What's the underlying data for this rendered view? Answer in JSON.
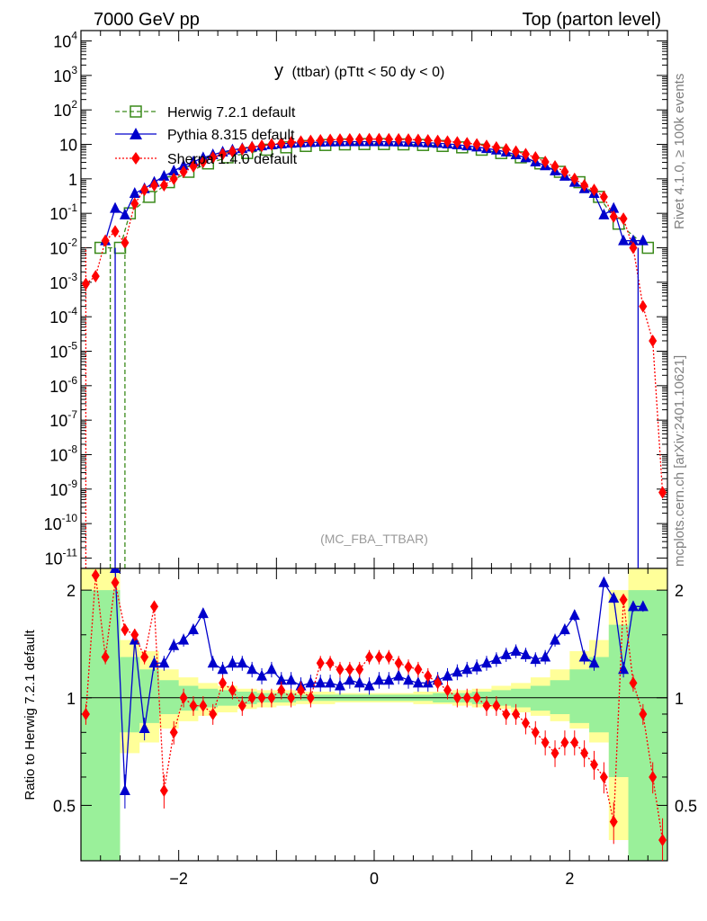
{
  "header": {
    "left": "7000 GeV pp",
    "right": "Top (parton level)"
  },
  "side_labels": {
    "rivet": "Rivet 4.1.0, ≥ 100k events",
    "mcplots": "mcplots.cern.ch [arXiv:2401.10621]"
  },
  "plot_title": {
    "main": "y",
    "sub": "(ttbar) (pTtt < 50 dy < 0)"
  },
  "watermark": "(MC_FBA_TTBAR)",
  "ratio_ylabel": "Ratio to Herwig 7.2.1 default",
  "colors": {
    "herwig": "#3a8a1a",
    "pythia": "#0000cc",
    "sherpa": "#ff0000",
    "band_green": "#9af09a",
    "band_yellow": "#ffff99"
  },
  "chart_data": [
    {
      "type": "line",
      "scale": "log",
      "xlim": [
        -3,
        3
      ],
      "ylim": [
        5e-12,
        20000
      ],
      "yticks": [
        {
          "label": "10",
          "exp": "-11",
          "v": 1e-11
        },
        {
          "label": "10",
          "exp": "-10",
          "v": 1e-10
        },
        {
          "label": "10",
          "exp": "-9",
          "v": 1e-09
        },
        {
          "label": "10",
          "exp": "-8",
          "v": 1e-08
        },
        {
          "label": "10",
          "exp": "-7",
          "v": 1e-07
        },
        {
          "label": "10",
          "exp": "-6",
          "v": 1e-06
        },
        {
          "label": "10",
          "exp": "-5",
          "v": 1e-05
        },
        {
          "label": "10",
          "exp": "-4",
          "v": 0.0001
        },
        {
          "label": "10",
          "exp": "-3",
          "v": 0.001
        },
        {
          "label": "10",
          "exp": "-2",
          "v": 0.01
        },
        {
          "label": "10",
          "exp": "-1",
          "v": 0.1
        },
        {
          "label": "1",
          "exp": "",
          "v": 1
        },
        {
          "label": "10",
          "exp": "",
          "v": 10
        },
        {
          "label": "10",
          "exp": "2",
          "v": 100
        },
        {
          "label": "10",
          "exp": "3",
          "v": 1000
        },
        {
          "label": "10",
          "exp": "4",
          "v": 10000
        }
      ],
      "series": [
        {
          "name": "Herwig 7.2.1 default",
          "marker": "square-open",
          "x": [
            -2.8,
            -2.6,
            -2.5,
            -2.3,
            -2.1,
            -1.9,
            -1.7,
            -1.5,
            -1.3,
            -1.1,
            -0.9,
            -0.7,
            -0.5,
            -0.3,
            -0.1,
            0.1,
            0.3,
            0.5,
            0.7,
            0.9,
            1.1,
            1.3,
            1.5,
            1.7,
            1.9,
            2.1,
            2.3,
            2.5,
            2.8
          ],
          "y": [
            0.01,
            0.01,
            0.1,
            0.3,
            0.8,
            1.6,
            2.8,
            4.2,
            5.6,
            7.0,
            8.2,
            9.0,
            9.6,
            10.0,
            10.2,
            10.2,
            10.0,
            9.6,
            9.0,
            8.2,
            7.0,
            5.6,
            4.2,
            2.8,
            1.6,
            0.8,
            0.3,
            0.05,
            0.01
          ]
        },
        {
          "name": "Pythia 8.315 default",
          "marker": "triangle",
          "x": [
            -2.75,
            -2.65,
            -2.55,
            -2.45,
            -2.35,
            -2.25,
            -2.15,
            -2.05,
            -1.95,
            -1.85,
            -1.75,
            -1.65,
            -1.55,
            -1.45,
            -1.35,
            -1.25,
            -1.15,
            -1.05,
            -0.95,
            -0.85,
            -0.75,
            -0.65,
            -0.55,
            -0.45,
            -0.35,
            -0.25,
            -0.15,
            -0.05,
            0.05,
            0.15,
            0.25,
            0.35,
            0.45,
            0.55,
            0.65,
            0.75,
            0.85,
            0.95,
            1.05,
            1.15,
            1.25,
            1.35,
            1.45,
            1.55,
            1.65,
            1.75,
            1.85,
            1.95,
            2.05,
            2.15,
            2.25,
            2.35,
            2.45,
            2.55,
            2.65,
            2.75
          ],
          "y": [
            0.016,
            0.14,
            0.09,
            0.38,
            0.52,
            0.8,
            1.2,
            1.7,
            2.4,
            3.1,
            4.1,
            5.0,
            6.0,
            6.9,
            7.6,
            8.4,
            9.1,
            9.8,
            10.3,
            10.8,
            11.1,
            11.4,
            11.6,
            11.8,
            11.9,
            12.0,
            12.0,
            12.0,
            12.0,
            11.9,
            11.8,
            11.6,
            11.4,
            11.1,
            10.8,
            10.3,
            9.8,
            9.1,
            8.4,
            7.6,
            6.9,
            6.0,
            5.0,
            4.1,
            3.1,
            2.4,
            1.7,
            1.2,
            0.8,
            0.52,
            0.38,
            0.09,
            0.14,
            0.016,
            0.016,
            0.016
          ]
        },
        {
          "name": "Sherpa 1.4.0 default",
          "marker": "diamond",
          "x": [
            -2.95,
            -2.85,
            -2.75,
            -2.65,
            -2.55,
            -2.45,
            -2.35,
            -2.25,
            -2.15,
            -2.05,
            -1.95,
            -1.85,
            -1.75,
            -1.65,
            -1.55,
            -1.45,
            -1.35,
            -1.25,
            -1.15,
            -1.05,
            -0.95,
            -0.85,
            -0.75,
            -0.65,
            -0.55,
            -0.45,
            -0.35,
            -0.25,
            -0.15,
            -0.05,
            0.05,
            0.15,
            0.25,
            0.35,
            0.45,
            0.55,
            0.65,
            0.75,
            0.85,
            0.95,
            1.05,
            1.15,
            1.25,
            1.35,
            1.45,
            1.55,
            1.65,
            1.75,
            1.85,
            1.95,
            2.05,
            2.15,
            2.25,
            2.35,
            2.45,
            2.55,
            2.65,
            2.75,
            2.85,
            2.95
          ],
          "y": [
            0.0009,
            0.0015,
            0.016,
            0.03,
            0.014,
            0.19,
            0.48,
            0.65,
            0.65,
            1.0,
            1.6,
            2.3,
            3.1,
            4.2,
            5.2,
            6.2,
            7.2,
            8.2,
            9.1,
            10.0,
            10.8,
            11.5,
            12.1,
            12.6,
            13.1,
            13.5,
            13.8,
            14.0,
            14.1,
            14.2,
            14.2,
            14.1,
            14.0,
            13.8,
            13.5,
            13.1,
            12.6,
            12.1,
            11.5,
            10.8,
            10.0,
            9.1,
            8.2,
            7.2,
            6.2,
            5.2,
            4.2,
            3.1,
            2.3,
            1.6,
            1.0,
            0.65,
            0.48,
            0.3,
            0.08,
            0.07,
            0.01,
            0.0002,
            2e-05,
            8e-10
          ]
        }
      ]
    },
    {
      "type": "line",
      "xlim": [
        -3,
        3
      ],
      "ylim": [
        0.35,
        2.3
      ],
      "xticks": [
        {
          "label": "−2",
          "v": -2
        },
        {
          "label": "0",
          "v": 0
        },
        {
          "label": "2",
          "v": 2
        }
      ],
      "yticks": [
        {
          "label": "0.5",
          "v": 0.5
        },
        {
          "label": "1",
          "v": 1
        },
        {
          "label": "2",
          "v": 2
        }
      ],
      "band_x": [
        -2.9,
        -2.7,
        -2.5,
        -2.3,
        -2.1,
        -1.9,
        -1.7,
        -1.5,
        -1.3,
        -1.1,
        -0.9,
        -0.7,
        -0.5,
        -0.3,
        -0.1,
        0.1,
        0.3,
        0.5,
        0.7,
        0.9,
        1.1,
        1.3,
        1.5,
        1.7,
        1.9,
        2.1,
        2.3,
        2.5,
        2.7,
        2.9
      ],
      "band_green_lo": [
        0.35,
        0.35,
        0.8,
        0.85,
        0.9,
        0.92,
        0.94,
        0.95,
        0.96,
        0.97,
        0.97,
        0.98,
        0.98,
        0.98,
        0.98,
        0.98,
        0.98,
        0.98,
        0.97,
        0.97,
        0.96,
        0.95,
        0.94,
        0.92,
        0.9,
        0.85,
        0.8,
        0.6,
        0.35,
        0.35
      ],
      "band_green_hi": [
        2.0,
        2.0,
        1.3,
        1.2,
        1.12,
        1.08,
        1.06,
        1.05,
        1.04,
        1.03,
        1.03,
        1.02,
        1.02,
        1.02,
        1.02,
        1.02,
        1.02,
        1.02,
        1.03,
        1.03,
        1.04,
        1.05,
        1.06,
        1.08,
        1.12,
        1.2,
        1.3,
        1.6,
        2.0,
        2.0
      ],
      "band_yellow_lo": [
        0.35,
        0.35,
        0.7,
        0.75,
        0.82,
        0.86,
        0.89,
        0.91,
        0.93,
        0.94,
        0.95,
        0.96,
        0.96,
        0.97,
        0.97,
        0.97,
        0.97,
        0.96,
        0.96,
        0.95,
        0.94,
        0.93,
        0.91,
        0.89,
        0.86,
        0.82,
        0.75,
        0.4,
        0.35,
        0.35
      ],
      "band_yellow_hi": [
        2.3,
        2.3,
        1.45,
        1.35,
        1.2,
        1.14,
        1.1,
        1.08,
        1.06,
        1.05,
        1.05,
        1.04,
        1.04,
        1.03,
        1.03,
        1.03,
        1.03,
        1.04,
        1.04,
        1.05,
        1.06,
        1.08,
        1.1,
        1.14,
        1.2,
        1.35,
        1.45,
        2.0,
        2.3,
        2.3
      ],
      "series": [
        {
          "name": "Pythia 8.315 default",
          "x": [
            -2.65,
            -2.55,
            -2.45,
            -2.35,
            -2.25,
            -2.15,
            -2.05,
            -1.95,
            -1.85,
            -1.75,
            -1.65,
            -1.55,
            -1.45,
            -1.35,
            -1.25,
            -1.15,
            -1.05,
            -0.95,
            -0.85,
            -0.75,
            -0.65,
            -0.55,
            -0.45,
            -0.35,
            -0.25,
            -0.15,
            -0.05,
            0.05,
            0.15,
            0.25,
            0.35,
            0.45,
            0.55,
            0.65,
            0.75,
            0.85,
            0.95,
            1.05,
            1.15,
            1.25,
            1.35,
            1.45,
            1.55,
            1.65,
            1.75,
            1.85,
            1.95,
            2.05,
            2.15,
            2.25,
            2.35,
            2.45,
            2.55,
            2.65,
            2.75
          ],
          "y": [
            2.3,
            0.55,
            1.45,
            0.82,
            1.25,
            1.25,
            1.4,
            1.45,
            1.55,
            1.72,
            1.25,
            1.2,
            1.25,
            1.25,
            1.2,
            1.15,
            1.2,
            1.12,
            1.12,
            1.08,
            1.1,
            1.1,
            1.1,
            1.08,
            1.12,
            1.1,
            1.08,
            1.12,
            1.12,
            1.15,
            1.12,
            1.1,
            1.1,
            1.12,
            1.15,
            1.18,
            1.2,
            1.22,
            1.25,
            1.28,
            1.32,
            1.35,
            1.32,
            1.28,
            1.3,
            1.45,
            1.55,
            1.7,
            1.3,
            1.25,
            2.1,
            1.9,
            1.2,
            1.8,
            1.8
          ]
        },
        {
          "name": "Sherpa 1.4.0 default",
          "x": [
            -2.95,
            -2.85,
            -2.75,
            -2.65,
            -2.55,
            -2.45,
            -2.35,
            -2.25,
            -2.15,
            -2.05,
            -1.95,
            -1.85,
            -1.75,
            -1.65,
            -1.55,
            -1.45,
            -1.35,
            -1.25,
            -1.15,
            -1.05,
            -0.95,
            -0.85,
            -0.75,
            -0.65,
            -0.55,
            -0.45,
            -0.35,
            -0.25,
            -0.15,
            -0.05,
            0.05,
            0.15,
            0.25,
            0.35,
            0.45,
            0.55,
            0.65,
            0.75,
            0.85,
            0.95,
            1.05,
            1.15,
            1.25,
            1.35,
            1.45,
            1.55,
            1.65,
            1.75,
            1.85,
            1.95,
            2.05,
            2.15,
            2.25,
            2.35,
            2.45,
            2.55,
            2.65,
            2.75,
            2.85,
            2.95
          ],
          "y": [
            0.9,
            2.2,
            1.3,
            2.1,
            1.55,
            1.5,
            1.3,
            1.8,
            0.55,
            0.8,
            1.0,
            0.95,
            0.95,
            0.9,
            1.1,
            1.05,
            0.95,
            1.0,
            1.0,
            1.0,
            1.05,
            1.0,
            1.05,
            1.0,
            1.25,
            1.25,
            1.2,
            1.2,
            1.2,
            1.3,
            1.3,
            1.3,
            1.25,
            1.22,
            1.2,
            1.15,
            1.1,
            1.05,
            1.0,
            1.0,
            1.0,
            0.95,
            0.95,
            0.9,
            0.9,
            0.85,
            0.8,
            0.75,
            0.7,
            0.75,
            0.75,
            0.7,
            0.65,
            0.6,
            0.45,
            1.88,
            1.1,
            0.9,
            0.6,
            0.4
          ]
        }
      ]
    }
  ]
}
